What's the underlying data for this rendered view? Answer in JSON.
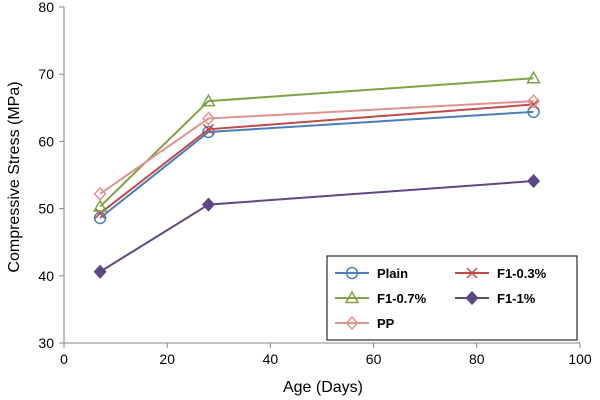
{
  "chart_data": {
    "type": "line",
    "xlabel": "Age (Days)",
    "ylabel": "Compressive Stress (MPa)",
    "xlim": [
      0,
      100
    ],
    "ylim": [
      30,
      80
    ],
    "xticks": [
      "0",
      "20",
      "40",
      "60",
      "80",
      "100"
    ],
    "yticks": [
      "30",
      "40",
      "50",
      "60",
      "70",
      "80"
    ],
    "grid": false,
    "legend_position": "bottom-right",
    "x": [
      7,
      28,
      91
    ],
    "series": [
      {
        "name": "Plain",
        "values": [
          48.6,
          61.4,
          64.4
        ],
        "color": "#4A7EBB",
        "marker": "circle"
      },
      {
        "name": "F1-0.3%",
        "values": [
          49.3,
          61.8,
          65.5
        ],
        "color": "#BE4B48",
        "marker": "x"
      },
      {
        "name": "F1-0.7%",
        "values": [
          50.3,
          66.0,
          69.4
        ],
        "color": "#7FA244",
        "marker": "triangle"
      },
      {
        "name": "F1-1%",
        "values": [
          40.6,
          50.6,
          54.1
        ],
        "color": "#5E4785",
        "marker": "diamond-filled"
      },
      {
        "name": "PP",
        "values": [
          52.2,
          63.4,
          66.0
        ],
        "color": "#E0928E",
        "marker": "diamond-open"
      }
    ]
  }
}
